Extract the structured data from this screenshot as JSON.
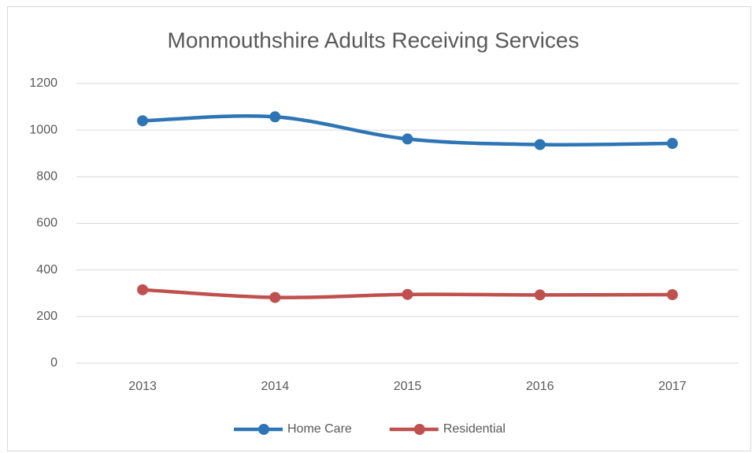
{
  "chart_data": {
    "type": "line",
    "title": "Monmouthshire Adults Receiving Services",
    "categories": [
      "2013",
      "2014",
      "2015",
      "2016",
      "2017"
    ],
    "series": [
      {
        "name": "Home Care",
        "color": "#2e75b6",
        "values": [
          1040,
          1057,
          962,
          938,
          943
        ]
      },
      {
        "name": "Residential",
        "color": "#c0504d",
        "values": [
          315,
          282,
          295,
          293,
          294
        ]
      }
    ],
    "ylim": [
      0,
      1200
    ],
    "yticks": [
      0,
      200,
      400,
      600,
      800,
      1000,
      1200
    ],
    "grid": true,
    "smooth": true,
    "legend": "bottom"
  }
}
